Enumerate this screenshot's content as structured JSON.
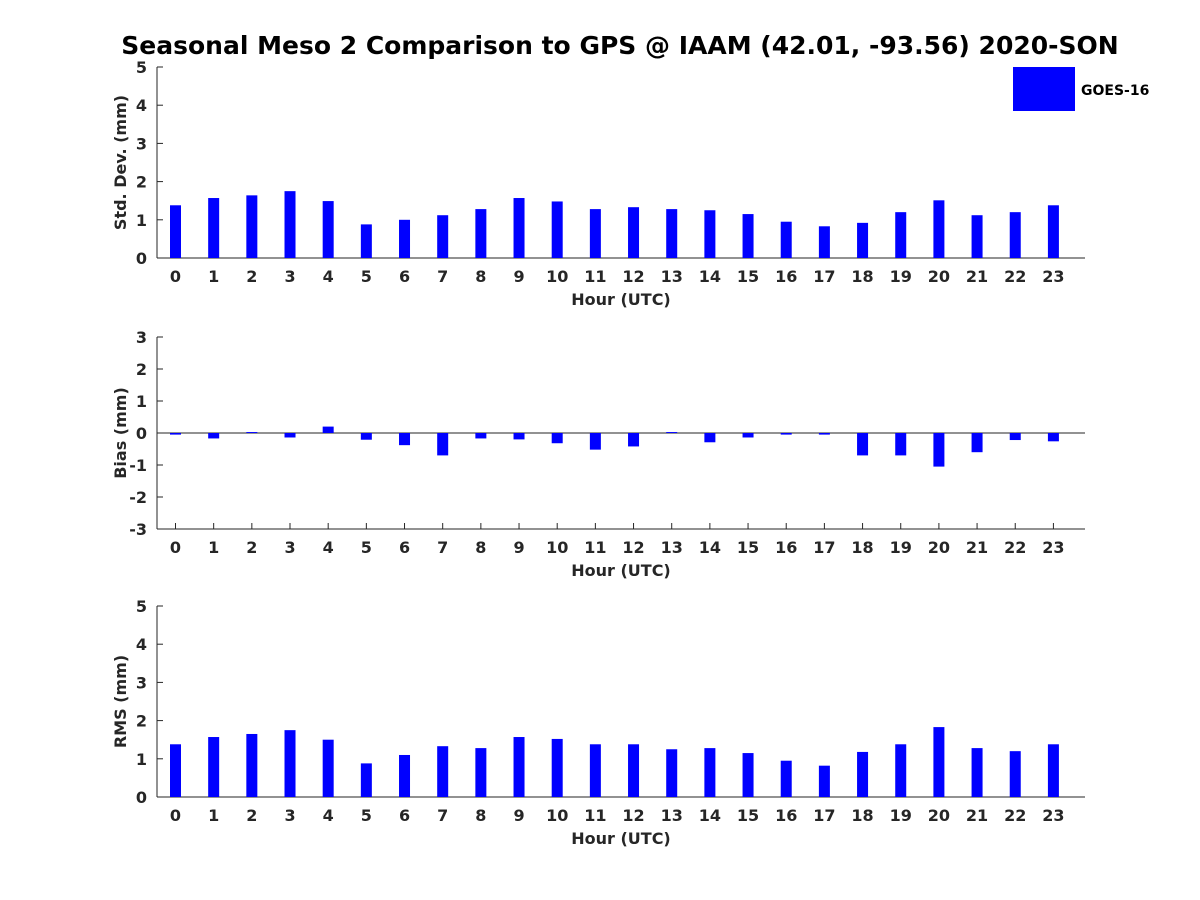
{
  "figure": {
    "title": "Seasonal Meso 2 Comparison to GPS @ IAAM (42.01, -93.56) 2020-SON"
  },
  "legend": {
    "label": "GOES-16",
    "color": "#0000ff",
    "placement": "top-right"
  },
  "chart_data": [
    {
      "type": "bar",
      "xlabel": "Hour (UTC)",
      "ylabel": "Std. Dev. (mm)",
      "ylim": [
        0,
        5
      ],
      "yticks": [
        0,
        1,
        2,
        3,
        4,
        5
      ],
      "categories": [
        "0",
        "1",
        "2",
        "3",
        "4",
        "5",
        "6",
        "7",
        "8",
        "9",
        "10",
        "11",
        "12",
        "13",
        "14",
        "15",
        "16",
        "17",
        "18",
        "19",
        "20",
        "21",
        "22",
        "23"
      ],
      "series": [
        {
          "name": "GOES-16",
          "color": "#0000ff",
          "values": [
            1.38,
            1.57,
            1.64,
            1.75,
            1.49,
            0.88,
            1.0,
            1.12,
            1.28,
            1.57,
            1.48,
            1.28,
            1.33,
            1.28,
            1.25,
            1.15,
            0.95,
            0.83,
            0.92,
            1.2,
            1.51,
            1.12,
            1.2,
            1.38
          ]
        }
      ],
      "grid": false
    },
    {
      "type": "bar",
      "xlabel": "Hour (UTC)",
      "ylabel": "Bias (mm)",
      "ylim": [
        -3,
        3
      ],
      "yticks": [
        -3,
        -2,
        -1,
        0,
        1,
        2,
        3
      ],
      "categories": [
        "0",
        "1",
        "2",
        "3",
        "4",
        "5",
        "6",
        "7",
        "8",
        "9",
        "10",
        "11",
        "12",
        "13",
        "14",
        "15",
        "16",
        "17",
        "18",
        "19",
        "20",
        "21",
        "22",
        "23"
      ],
      "series": [
        {
          "name": "GOES-16",
          "color": "#0000ff",
          "values": [
            -0.05,
            -0.17,
            0.03,
            -0.14,
            0.2,
            -0.21,
            -0.38,
            -0.7,
            -0.17,
            -0.2,
            -0.32,
            -0.52,
            -0.42,
            0.03,
            -0.29,
            -0.14,
            -0.05,
            -0.05,
            -0.7,
            -0.7,
            -1.05,
            -0.6,
            -0.22,
            -0.26
          ]
        }
      ],
      "zero_line": true,
      "grid": false
    },
    {
      "type": "bar",
      "xlabel": "Hour (UTC)",
      "ylabel": "RMS (mm)",
      "ylim": [
        0,
        5
      ],
      "yticks": [
        0,
        1,
        2,
        3,
        4,
        5
      ],
      "categories": [
        "0",
        "1",
        "2",
        "3",
        "4",
        "5",
        "6",
        "7",
        "8",
        "9",
        "10",
        "11",
        "12",
        "13",
        "14",
        "15",
        "16",
        "17",
        "18",
        "19",
        "20",
        "21",
        "22",
        "23"
      ],
      "series": [
        {
          "name": "GOES-16",
          "color": "#0000ff",
          "values": [
            1.38,
            1.57,
            1.65,
            1.75,
            1.5,
            0.88,
            1.1,
            1.33,
            1.28,
            1.57,
            1.52,
            1.38,
            1.38,
            1.25,
            1.28,
            1.15,
            0.95,
            0.82,
            1.18,
            1.38,
            1.83,
            1.28,
            1.2,
            1.38
          ]
        }
      ],
      "grid": false
    }
  ]
}
